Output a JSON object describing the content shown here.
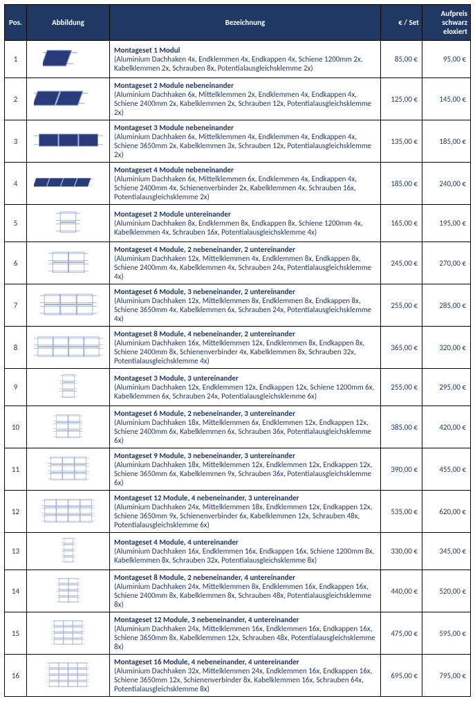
{
  "headers": {
    "pos": "Pos.",
    "image": "Abbildung",
    "desc": "Bezeichnung",
    "price": "€ / Set",
    "surcharge": "Aufpreis schwarz eloxiert"
  },
  "colors": {
    "header_bg": "#1f3864",
    "header_text": "#ffffff",
    "text": "#1f3864",
    "border": "#000000",
    "panel_fill": "#2a3b7a",
    "panel_stroke": "#8aa0d0",
    "rail": "#b0bcd8"
  },
  "rows": [
    {
      "pos": "1",
      "title": "Montageset 1 Modul",
      "detail": "(Aluminium Dachhaken 4x, Endklemmen 4x, Endkappen 4x, Schiene 1200mm 2x, Kabelklemmen 2x, Schrauben 8x, Potentialausgleichsklemme 2x)",
      "price": "85,00 €",
      "surcharge": "95,00 €",
      "layout": {
        "cols": 1,
        "rows": 1,
        "perspective": true
      }
    },
    {
      "pos": "2",
      "title": "Montageset 2 Module nebeneinander",
      "detail": "(Aluminium Dachhaken 6x, Mittelklemmen 2x, Endklemmen 4x, Endkappen 4x, Schiene 2400mm 2x, Kabelklemmen 2x, Schrauben 12x, Potentialausgleichsklemme 2x)",
      "price": "125,00 €",
      "surcharge": "145,00 €",
      "layout": {
        "cols": 2,
        "rows": 1,
        "perspective": true
      }
    },
    {
      "pos": "3",
      "title": "Montageset 3 Module nebeneinander",
      "detail": "(Aluminium Dachhaken 6x, Mittelklemmen 4x, Endklemmen 4x, Endkappen 4x, Schiene 3650mm 2x, Kabelklemmen 3x, Schrauben 12x, Potentialausgleichsklemme 2x)",
      "price": "135,00 €",
      "surcharge": "185,00 €",
      "layout": {
        "cols": 3,
        "rows": 1,
        "perspective": false
      }
    },
    {
      "pos": "4",
      "title": "Montageset 4 Module nebeneinander",
      "detail": "(Aluminium Dachhaken 6x, Mittelklemmen 6x, Endklemmen 4x, Endkappen 4x, Schiene 2400mm 4x, Schienenverbinder 2x, Kabelklemmen 4x, Schrauben 16x, Potentialausgleichsklemme 2x)",
      "price": "185,00 €",
      "surcharge": "240,00 €",
      "layout": {
        "cols": 4,
        "rows": 1,
        "perspective": true
      }
    },
    {
      "pos": "5",
      "title": "Montageset 2 Module untereinander",
      "detail": "(Aluminium Dachhaken 8x, Endklemmen 8x, Endkappen 8x, Schiene 1200mm 4x, Kabelklemmen 4x, Schrauben 16x, Potentialausgleichsklemme 4x)",
      "price": "165,00 €",
      "surcharge": "195,00 €",
      "layout": {
        "cols": 1,
        "rows": 2,
        "perspective": false
      }
    },
    {
      "pos": "6",
      "title": "Montageset 4 Module, 2 nebeneinander, 2 untereinander",
      "detail": "(Aluminium Dachhaken 12x, Mittelklemmen 4x, Endklemmen 8x, Endkappen 8x, Schiene 2400mm 4x, Kabelklemmen 4x, Schrauben 24x, Potentialausgleichsklemme 4x)",
      "price": "245,00 €",
      "surcharge": "270,00 €",
      "layout": {
        "cols": 2,
        "rows": 2,
        "perspective": false
      }
    },
    {
      "pos": "7",
      "title": "Montageset 6 Module, 3 nebeneinander, 2 untereinander",
      "detail": "(Aluminium Dachhaken 12x, Mittelklemmen 8x, Endklemmen 8x, Endkappen 8x, Schiene 3650mm 4x, Kabelklemmen 6x, Schrauben 24x, Potentialausgleichsklemme 4x)",
      "price": "255,00 €",
      "surcharge": "285,00 €",
      "layout": {
        "cols": 3,
        "rows": 2,
        "perspective": false
      }
    },
    {
      "pos": "8",
      "title": "Montageset 8 Module, 4 nebeneinander, 2 untereinander",
      "detail": "(Aluminium Dachhaken 16x, Mittelklemmen 12x, Endklemmen 8x, Endkappen 8x, Schiene 2400mm 8x, Schienenverbinder 4x, Kabelklemmen 8x, Schrauben 32x, Potentialausgleichsklemme 4x)",
      "price": "365,00 €",
      "surcharge": "320,00 €",
      "layout": {
        "cols": 4,
        "rows": 2,
        "perspective": false
      }
    },
    {
      "pos": "9",
      "title": "Montageset 3 Module, 3 untereinander",
      "detail": "(Aluminium Dachhaken 12x, Endklemmen 12x, Endkappen 12x, Schiene 1200mm 6x,  Kabelklemmen 6x, Schrauben 24x, Potentialausgleichsklemme 6x)",
      "price": "255,00 €",
      "surcharge": "295,00 €",
      "layout": {
        "cols": 1,
        "rows": 3,
        "perspective": false
      }
    },
    {
      "pos": "10",
      "title": "Montageset 6 Module, 2 nebeneinander, 3 untereinander",
      "detail": "(Aluminium Dachhaken 18x, Mittelklemmen 6x, Endklemmen 12x, Endkappen 12x, Schiene 2400mm 6x, Kabelklemmen 6x, Schrauben 36x, Potentialausgleichsklemme 6x)",
      "price": "385,00 €",
      "surcharge": "420,00 €",
      "layout": {
        "cols": 2,
        "rows": 3,
        "perspective": false
      }
    },
    {
      "pos": "11",
      "title": "Montageset 9 Module, 3 nebeneinander, 3 untereinander",
      "detail": "(Aluminium Dachhaken 18x, Mittelklemmen 12x, Endklemmen 12x, Endkappen 12x, Schiene 3650mm 6x, Kabelklemmen 9x, Schrauben 36x, Potentialausgleichsklemme 6x)",
      "price": "390,00 €",
      "surcharge": "455,00 €",
      "layout": {
        "cols": 3,
        "rows": 3,
        "perspective": false
      }
    },
    {
      "pos": "12",
      "title": "Montageset 12 Module, 4 nebeneinander, 3 untereinander",
      "detail": "(Aluminium Dachhaken 24x, Mittelklemmen 18x, Endklemmen 12x, Endkappen 12x, Schiene 3650mm 9x, Schienenverbinder 6x, Kabelklemmen 12x, Schrauben 48x, Potentialausgleichsklemme 6x)",
      "price": "535,00 €",
      "surcharge": "620,00 €",
      "layout": {
        "cols": 4,
        "rows": 3,
        "perspective": false
      }
    },
    {
      "pos": "13",
      "title": "Montageset 4 Module, 4 untereinander",
      "detail": "(Aluminium Dachhaken 16x, Endklemmen 16x, Endkappen 16x, Schiene 1200mm 8x, Kabelklemmen 8x, Schrauben 32x, Potentialausgleichsklemme 8x)",
      "price": "330,00 €",
      "surcharge": "345,00 €",
      "layout": {
        "cols": 1,
        "rows": 4,
        "perspective": false
      }
    },
    {
      "pos": "14",
      "title": "Montageset 8 Module, 2 nebeneinander, 4 untereinander",
      "detail": "(Aluminium Dachhaken 24x, Mittelklemmen 8x, Endklemmen 16x, Endkappen 16x, Schiene 2400mm 8x, Kabelklemmen 8x, Schrauben 48x, Potentialausgleichsklemme 8x)",
      "price": "440,00 €",
      "surcharge": "520,00 €",
      "layout": {
        "cols": 2,
        "rows": 4,
        "perspective": false
      }
    },
    {
      "pos": "15",
      "title": "Montageset 12 Module, 3 nebeneinander, 4 untereinander",
      "detail": "(Aluminium  Dachhaken 24x, Mittelklemmen 16x, Endklemmen 16x, Endkappen 16x, Schiene 3650mm 8x, Kabelklemmen 12x, Schrauben 48x, Potentialausgleichsklemme 8x)",
      "price": "475,00 €",
      "surcharge": "595,00 €",
      "layout": {
        "cols": 3,
        "rows": 4,
        "perspective": false
      }
    },
    {
      "pos": "16",
      "title": "Montageset 16 Module, 4 nebeneinander, 4 untereinander",
      "detail": "(Aluminium Dachhaken 32x, Mittelklemmen 24x, Endklemmen 16x, Endkappen 16x, Schiene 3650mm 12x, Schienenverbinder 8x, Kabelklemmen 16x, Schrauben 64x, Potentialausgleichsklemme 8x)",
      "price": "695,00 €",
      "surcharge": "795,00 €",
      "layout": {
        "cols": 4,
        "rows": 4,
        "perspective": false
      }
    }
  ]
}
